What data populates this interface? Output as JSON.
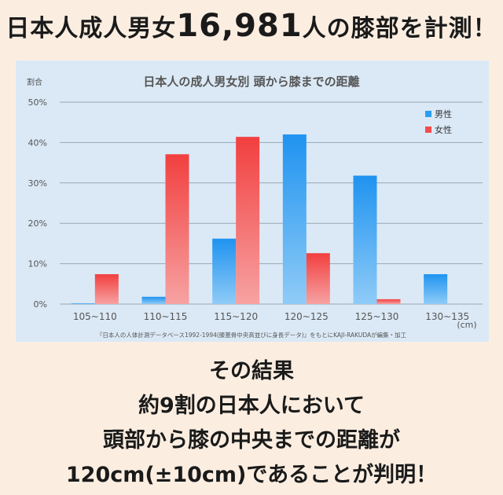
{
  "headline": {
    "prefix": "日本人成人男女",
    "number": "16,981",
    "suffix": "人の膝部を計測！"
  },
  "chart_data": {
    "type": "bar",
    "title": "日本人の成人男女別 頭から膝までの距離",
    "ylabel": "割合",
    "xunit": "(cm)",
    "categories": [
      "105~110",
      "110~115",
      "115~120",
      "120~125",
      "125~130",
      "130~135"
    ],
    "ylim": [
      0,
      50
    ],
    "yticks": [
      "0%",
      "10%",
      "20%",
      "30%",
      "40%",
      "50%"
    ],
    "grid": true,
    "legend_position": "top-right",
    "series": [
      {
        "name": "男性",
        "values": [
          0.2,
          1.8,
          16.2,
          42.0,
          31.8,
          7.4
        ],
        "color": "#2b9ef2"
      },
      {
        "name": "女性",
        "values": [
          7.4,
          37.1,
          41.4,
          12.6,
          1.2,
          0
        ],
        "color": "#f24b4b"
      }
    ],
    "source": "『日本人の人体計測データベース1992-1994(膝蓋骨中央高並びに身長データ)』をもとにKAJI-RAKUDAが編集・加工"
  },
  "conclusion": {
    "line1": "その結果",
    "line2": "約9割の日本人において",
    "line3": "頭部から膝の中央までの距離が",
    "line4": "120cm(±10cm)であることが判明！"
  }
}
